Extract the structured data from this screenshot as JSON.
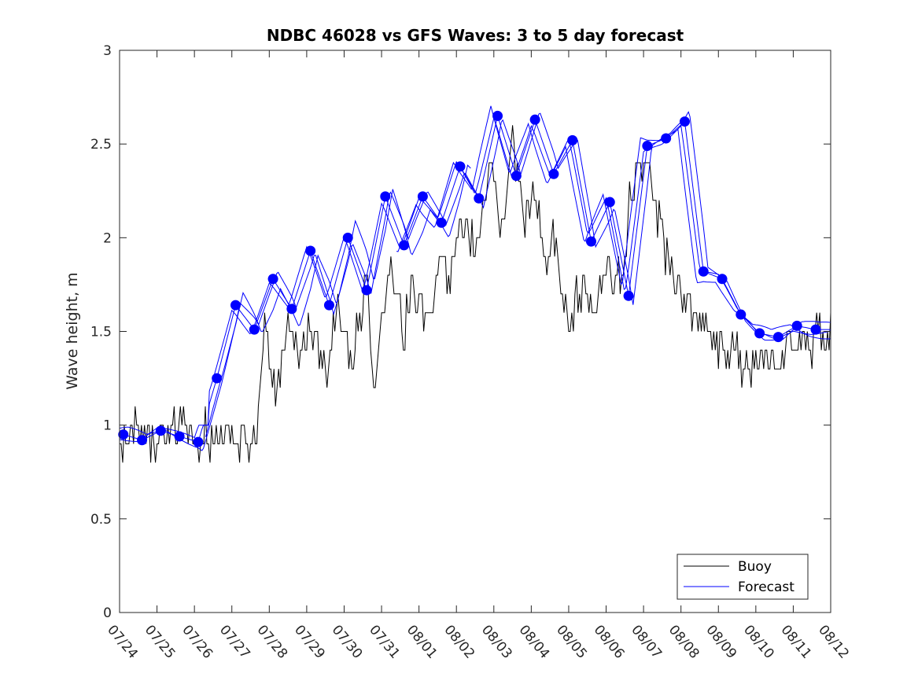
{
  "chart_data": {
    "type": "line",
    "title": "NDBC 46028 vs GFS Waves: 3 to 5 day forecast",
    "xlabel": "",
    "ylabel": "Wave height, m",
    "ylim": [
      0,
      3
    ],
    "yticks": [
      "0",
      "0.5",
      "1",
      "1.5",
      "2",
      "2.5",
      "3"
    ],
    "xticks": [
      "07/24",
      "07/25",
      "07/26",
      "07/27",
      "07/28",
      "07/29",
      "07/30",
      "07/31",
      "08/01",
      "08/02",
      "08/03",
      "08/04",
      "08/05",
      "08/06",
      "08/07",
      "08/08",
      "08/09",
      "08/10",
      "08/11",
      "08/12"
    ],
    "grid": false,
    "legend_position": "bottom-right",
    "legend": [
      "Buoy",
      "Forecast"
    ],
    "colors": {
      "buoy": "#000000",
      "forecast": "#0000ff",
      "markers": "#0000ff"
    },
    "buoy": {
      "name": "Buoy",
      "anchors_x": [
        0.0,
        0.5,
        1.0,
        1.5,
        2.0,
        2.5,
        3.0,
        3.2,
        3.6,
        3.9,
        4.2,
        4.5,
        4.8,
        5.1,
        5.5,
        5.8,
        6.2,
        6.6,
        6.8,
        7.2,
        7.6,
        7.8,
        8.2,
        8.6,
        8.8,
        9.2,
        9.6,
        9.9,
        10.2,
        10.5,
        10.8,
        11.1,
        11.4,
        11.6,
        12.0,
        12.3,
        12.7,
        13.0,
        13.4,
        13.7,
        14.0,
        14.3,
        14.6,
        14.9,
        15.2,
        15.5,
        15.9,
        16.2,
        16.6,
        16.8,
        17.1,
        17.4,
        17.7,
        18.0,
        18.3,
        18.6,
        19.0
      ],
      "anchors_y": [
        0.95,
        1.0,
        0.92,
        1.0,
        0.95,
        0.95,
        0.95,
        0.9,
        0.9,
        1.5,
        1.2,
        1.6,
        1.3,
        1.6,
        1.25,
        1.7,
        1.3,
        1.8,
        1.2,
        1.8,
        1.5,
        1.75,
        1.55,
        1.9,
        1.8,
        2.1,
        1.9,
        2.4,
        2.0,
        2.55,
        2.05,
        2.3,
        1.85,
        2.0,
        1.5,
        1.75,
        1.55,
        1.85,
        1.8,
        2.3,
        2.45,
        2.2,
        1.9,
        1.75,
        1.65,
        1.55,
        1.45,
        1.4,
        1.35,
        1.3,
        1.35,
        1.4,
        1.35,
        1.45,
        1.45,
        1.45,
        1.5
      ]
    },
    "forecast_markers": {
      "name": "Forecast",
      "x": [
        0.1,
        0.6,
        1.1,
        1.6,
        2.1,
        2.6,
        3.1,
        3.6,
        4.1,
        4.6,
        5.1,
        5.6,
        6.1,
        6.6,
        7.1,
        7.6,
        8.1,
        8.6,
        9.1,
        9.6,
        10.1,
        10.6,
        11.1,
        11.6,
        12.1,
        12.6,
        13.1,
        13.6,
        14.1,
        14.6,
        15.1,
        15.6,
        16.1,
        16.6,
        17.1,
        17.6,
        18.1,
        18.6
      ],
      "y": [
        0.95,
        0.92,
        0.97,
        0.94,
        0.91,
        1.25,
        1.64,
        1.51,
        1.78,
        1.62,
        1.93,
        1.64,
        2.0,
        1.72,
        2.22,
        1.96,
        2.22,
        2.08,
        2.38,
        2.21,
        2.65,
        2.33,
        2.63,
        2.34,
        2.52,
        1.98,
        2.19,
        1.69,
        2.49,
        2.53,
        2.62,
        1.82,
        1.78,
        1.59,
        1.49,
        1.47,
        1.53,
        1.51
      ]
    }
  }
}
